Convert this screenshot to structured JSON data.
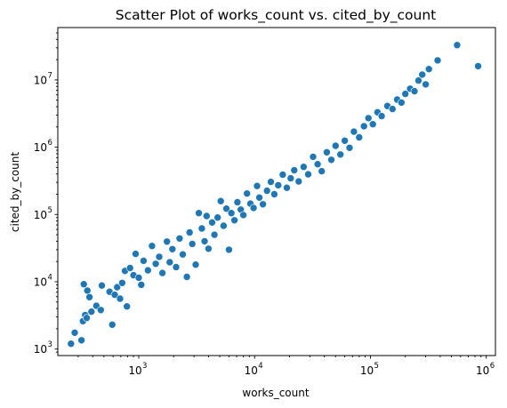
{
  "chart_data": {
    "type": "scatter",
    "title": "Scatter Plot of works_count vs. cited_by_count",
    "xlabel": "works_count",
    "ylabel": "cited_by_count",
    "xscale": "log",
    "yscale": "log",
    "xlim": [
      200,
      1200000
    ],
    "ylim": [
      800,
      60000000
    ],
    "grid": false,
    "legend": "none",
    "color": "#1f77b4",
    "x_ticks": [
      {
        "base": "10",
        "exp": "3",
        "value": 1000
      },
      {
        "base": "10",
        "exp": "4",
        "value": 10000
      },
      {
        "base": "10",
        "exp": "5",
        "value": 100000
      },
      {
        "base": "10",
        "exp": "6",
        "value": 1000000
      }
    ],
    "y_ticks": [
      {
        "base": "10",
        "exp": "3",
        "value": 1000
      },
      {
        "base": "10",
        "exp": "4",
        "value": 10000
      },
      {
        "base": "10",
        "exp": "5",
        "value": 100000
      },
      {
        "base": "10",
        "exp": "6",
        "value": 1000000
      },
      {
        "base": "10",
        "exp": "7",
        "value": 10000000
      }
    ],
    "points": [
      [
        260,
        1200
      ],
      [
        280,
        1750
      ],
      [
        320,
        1350
      ],
      [
        330,
        2600
      ],
      [
        335,
        9200
      ],
      [
        345,
        3200
      ],
      [
        355,
        2900
      ],
      [
        360,
        7400
      ],
      [
        375,
        5900
      ],
      [
        390,
        3600
      ],
      [
        430,
        4400
      ],
      [
        470,
        3800
      ],
      [
        480,
        8800
      ],
      [
        560,
        7100
      ],
      [
        590,
        2300
      ],
      [
        620,
        6400
      ],
      [
        650,
        8300
      ],
      [
        690,
        5600
      ],
      [
        720,
        9600
      ],
      [
        760,
        14500
      ],
      [
        790,
        4300
      ],
      [
        840,
        16000
      ],
      [
        900,
        12500
      ],
      [
        940,
        26000
      ],
      [
        1000,
        11500
      ],
      [
        1050,
        9000
      ],
      [
        1100,
        20500
      ],
      [
        1200,
        14800
      ],
      [
        1300,
        34000
      ],
      [
        1400,
        18500
      ],
      [
        1500,
        23500
      ],
      [
        1600,
        13500
      ],
      [
        1750,
        39500
      ],
      [
        1850,
        19500
      ],
      [
        1950,
        30500
      ],
      [
        2100,
        16500
      ],
      [
        2250,
        44000
      ],
      [
        2400,
        25500
      ],
      [
        2600,
        11800
      ],
      [
        2750,
        54000
      ],
      [
        2900,
        36500
      ],
      [
        3100,
        18000
      ],
      [
        3300,
        105000
      ],
      [
        3500,
        62000
      ],
      [
        3700,
        40000
      ],
      [
        3850,
        95000
      ],
      [
        4000,
        31000
      ],
      [
        4300,
        76000
      ],
      [
        4500,
        50000
      ],
      [
        4800,
        90000
      ],
      [
        5100,
        158000
      ],
      [
        5400,
        68000
      ],
      [
        5700,
        122000
      ],
      [
        6000,
        30000
      ],
      [
        6300,
        105000
      ],
      [
        6700,
        82000
      ],
      [
        7100,
        152000
      ],
      [
        7600,
        118000
      ],
      [
        8000,
        98000
      ],
      [
        8600,
        205000
      ],
      [
        9200,
        145000
      ],
      [
        9800,
        125000
      ],
      [
        10500,
        265000
      ],
      [
        11000,
        178000
      ],
      [
        11800,
        142000
      ],
      [
        12800,
        225000
      ],
      [
        13800,
        305000
      ],
      [
        14800,
        200000
      ],
      [
        16000,
        272000
      ],
      [
        17500,
        390000
      ],
      [
        19000,
        250000
      ],
      [
        20500,
        345000
      ],
      [
        22000,
        455000
      ],
      [
        24000,
        310000
      ],
      [
        26500,
        510000
      ],
      [
        29000,
        395000
      ],
      [
        32000,
        720000
      ],
      [
        35000,
        560000
      ],
      [
        38000,
        440000
      ],
      [
        42000,
        840000
      ],
      [
        46000,
        650000
      ],
      [
        50000,
        1050000
      ],
      [
        55000,
        780000
      ],
      [
        60000,
        1250000
      ],
      [
        66000,
        980000
      ],
      [
        72000,
        1700000
      ],
      [
        80000,
        1400000
      ],
      [
        88000,
        2050000
      ],
      [
        96000,
        2700000
      ],
      [
        105000,
        2200000
      ],
      [
        115000,
        3300000
      ],
      [
        125000,
        2900000
      ],
      [
        140000,
        4100000
      ],
      [
        155000,
        3700000
      ],
      [
        170000,
        5100000
      ],
      [
        185000,
        4600000
      ],
      [
        200000,
        6200000
      ],
      [
        220000,
        7400000
      ],
      [
        240000,
        6800000
      ],
      [
        260000,
        9800000
      ],
      [
        280000,
        12000000
      ],
      [
        300000,
        8600000
      ],
      [
        320000,
        14500000
      ],
      [
        380000,
        19500000
      ],
      [
        560000,
        33000000
      ],
      [
        850000,
        16000000
      ]
    ]
  }
}
